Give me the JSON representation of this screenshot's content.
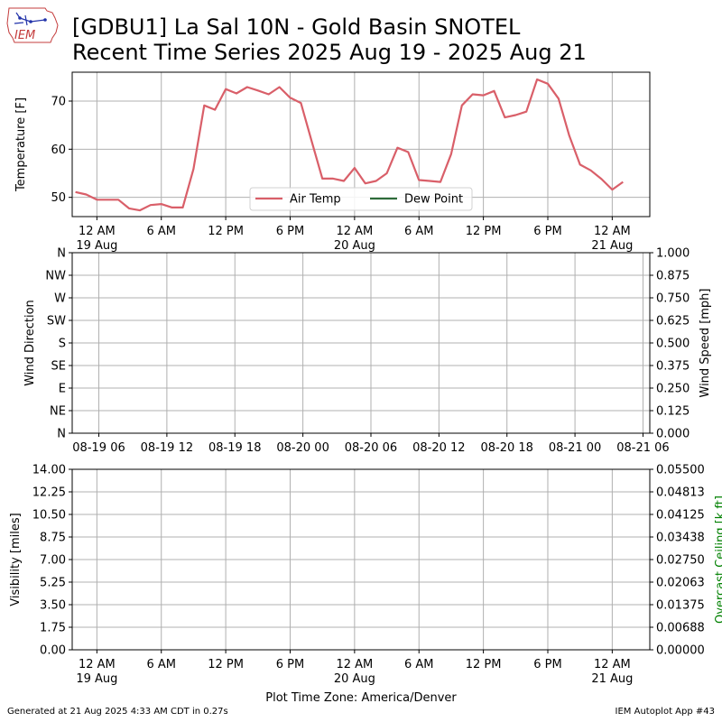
{
  "title_line1": "[GDBU1] La Sal 10N - Gold Basin SNOTEL",
  "title_line2": "Recent Time Series 2025 Aug 19 - 2025 Aug 21",
  "logo_text": "IEM",
  "footer_left": "Generated at 21 Aug 2025 4:33 AM CDT in 0.27s",
  "footer_right": "IEM Autoplot App #43",
  "xlabel": "Plot Time Zone: America/Denver",
  "colors": {
    "air_temp": "#d95f69",
    "dew_point": "#2e6b3a",
    "ceiling_label": "#008000",
    "grid": "#b0b0b0"
  },
  "chart_data": [
    {
      "type": "line",
      "ylabel": "Temperature [F]",
      "ylim": [
        46,
        76
      ],
      "yticks": [
        50,
        60,
        70
      ],
      "xticks": [
        {
          "line1": "12 AM",
          "line2": "19 Aug"
        },
        {
          "line1": "6 AM",
          "line2": ""
        },
        {
          "line1": "12 PM",
          "line2": ""
        },
        {
          "line1": "6 PM",
          "line2": ""
        },
        {
          "line1": "12 AM",
          "line2": "20 Aug"
        },
        {
          "line1": "6 AM",
          "line2": ""
        },
        {
          "line1": "12 PM",
          "line2": ""
        },
        {
          "line1": "6 PM",
          "line2": ""
        },
        {
          "line1": "12 AM",
          "line2": "21 Aug"
        }
      ],
      "legend": [
        "Air Temp",
        "Dew Point"
      ],
      "legend_position": "lower center",
      "grid": true,
      "series": [
        {
          "name": "Air Temp",
          "x": [
            "08-18 22:00",
            "08-18 23:00",
            "08-19 00:00",
            "08-19 01:00",
            "08-19 02:00",
            "08-19 03:00",
            "08-19 04:00",
            "08-19 05:00",
            "08-19 06:00",
            "08-19 07:00",
            "08-19 08:00",
            "08-19 09:00",
            "08-19 10:00",
            "08-19 11:00",
            "08-19 12:00",
            "08-19 13:00",
            "08-19 14:00",
            "08-19 15:00",
            "08-19 16:00",
            "08-19 17:00",
            "08-19 18:00",
            "08-19 19:00",
            "08-19 20:00",
            "08-19 21:00",
            "08-19 22:00",
            "08-19 23:00",
            "08-20 00:00",
            "08-20 01:00",
            "08-20 02:00",
            "08-20 03:00",
            "08-20 04:00",
            "08-20 05:00",
            "08-20 06:00",
            "08-20 07:00",
            "08-20 08:00",
            "08-20 09:00",
            "08-20 10:00",
            "08-20 11:00",
            "08-20 12:00",
            "08-20 13:00",
            "08-20 14:00",
            "08-20 15:00",
            "08-20 16:00",
            "08-20 17:00",
            "08-20 18:00",
            "08-20 19:00",
            "08-20 20:00",
            "08-20 21:00",
            "08-20 22:00",
            "08-20 23:00",
            "08-21 00:00",
            "08-21 01:00"
          ],
          "y": [
            51.1,
            50.6,
            49.5,
            49.5,
            49.5,
            47.7,
            47.3,
            48.4,
            48.6,
            47.9,
            47.9,
            55.9,
            69.1,
            68.2,
            72.5,
            71.6,
            72.9,
            72.2,
            71.4,
            72.9,
            70.7,
            69.6,
            61.7,
            53.9,
            53.9,
            53.4,
            56.1,
            52.9,
            53.4,
            55.0,
            60.3,
            59.4,
            53.6,
            53.4,
            53.2,
            59.0,
            69.1,
            71.4,
            71.2,
            72.1,
            66.6,
            67.1,
            67.8,
            74.5,
            73.6,
            70.5,
            62.8,
            56.8,
            55.6,
            53.8,
            51.6,
            53.2
          ]
        },
        {
          "name": "Dew Point",
          "x": [],
          "y": []
        }
      ]
    },
    {
      "type": "line",
      "ylabel": "Wind Direction",
      "ylabel_right": "Wind Speed [mph]",
      "ylim": [
        0,
        360
      ],
      "yticks": [
        "N",
        "NE",
        "E",
        "SE",
        "S",
        "SW",
        "W",
        "NW",
        "N"
      ],
      "ylim_right": [
        0,
        1
      ],
      "yticks_right": [
        "0.000",
        "0.125",
        "0.250",
        "0.375",
        "0.500",
        "0.625",
        "0.750",
        "0.875",
        "1.000"
      ],
      "xticks": [
        "08-19 06",
        "08-19 12",
        "08-19 18",
        "08-20 00",
        "08-20 06",
        "08-20 12",
        "08-20 18",
        "08-21 00",
        "08-21 06"
      ],
      "grid": true,
      "series": []
    },
    {
      "type": "line",
      "ylabel": "Visibility [miles]",
      "ylabel_right": "Overcast Ceiling [k ft]",
      "ylim": [
        0,
        14
      ],
      "yticks": [
        "0.00",
        "1.75",
        "3.50",
        "5.25",
        "7.00",
        "8.75",
        "10.50",
        "12.25",
        "14.00"
      ],
      "ylim_right": [
        0,
        0.055
      ],
      "yticks_right": [
        "0.00000",
        "0.00688",
        "0.01375",
        "0.02063",
        "0.02750",
        "0.03438",
        "0.04125",
        "0.04813",
        "0.05500"
      ],
      "xticks": [
        {
          "line1": "12 AM",
          "line2": "19 Aug"
        },
        {
          "line1": "6 AM",
          "line2": ""
        },
        {
          "line1": "12 PM",
          "line2": ""
        },
        {
          "line1": "6 PM",
          "line2": ""
        },
        {
          "line1": "12 AM",
          "line2": "20 Aug"
        },
        {
          "line1": "6 AM",
          "line2": ""
        },
        {
          "line1": "12 PM",
          "line2": ""
        },
        {
          "line1": "6 PM",
          "line2": ""
        },
        {
          "line1": "12 AM",
          "line2": "21 Aug"
        }
      ],
      "grid": true,
      "series": []
    }
  ]
}
